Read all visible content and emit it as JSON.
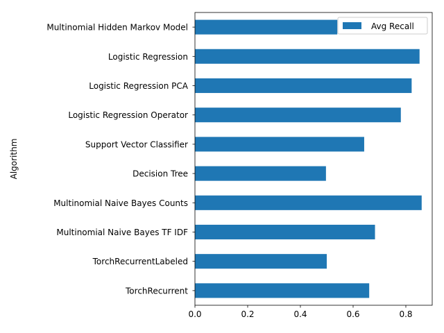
{
  "chart_data": {
    "type": "bar",
    "orientation": "horizontal",
    "title": "",
    "xlabel": "",
    "ylabel": "Algorithm",
    "xlim": [
      0,
      0.9
    ],
    "xticks": [
      0.0,
      0.2,
      0.4,
      0.6,
      0.8
    ],
    "xtick_labels": [
      "0.0",
      "0.2",
      "0.4",
      "0.6",
      "0.8"
    ],
    "categories": [
      "Multinomial Hidden Markov Model",
      "Logistic Regression",
      "Logistic Regression PCA",
      "Logistic Regression Operator",
      "Support Vector Classifier",
      "Decision Tree",
      "Multinomial Naive Bayes Counts",
      "Multinomial Naive Bayes TF IDF",
      "TorchRecurrentLabeled",
      "TorchRecurrent"
    ],
    "series": [
      {
        "name": "Avg Recall",
        "color": "#1f77b4",
        "values": [
          0.54,
          0.852,
          0.822,
          0.781,
          0.642,
          0.497,
          0.86,
          0.683,
          0.5,
          0.661
        ]
      }
    ],
    "legend": {
      "entries": [
        "Avg Recall"
      ],
      "location": "top-right"
    },
    "grid": false
  }
}
